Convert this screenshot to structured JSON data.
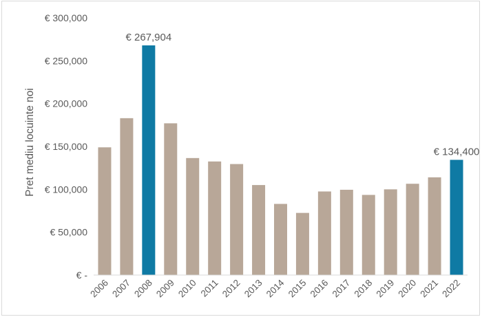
{
  "chart_data": {
    "type": "bar",
    "ylabel": "Pret mediu locuinte noi",
    "xlabel": "",
    "title": "",
    "ylim": [
      0,
      300000
    ],
    "grid": false,
    "legend": "none",
    "categories": [
      "2006",
      "2007",
      "2008",
      "2009",
      "2010",
      "2011",
      "2012",
      "2013",
      "2014",
      "2015",
      "2016",
      "2017",
      "2018",
      "2019",
      "2020",
      "2021",
      "2022"
    ],
    "values": [
      149000,
      183000,
      267904,
      177000,
      136500,
      132500,
      129500,
      105000,
      83000,
      72500,
      97500,
      99500,
      93500,
      100000,
      106500,
      114000,
      134400
    ],
    "highlighted": [
      "2008",
      "2022"
    ],
    "y_tick_values": [
      0,
      50000,
      100000,
      150000,
      200000,
      250000,
      300000
    ],
    "y_tick_labels": [
      "€ -",
      "€ 50,000",
      "€ 100,000",
      "€ 150,000",
      "€ 200,000",
      "€ 250,000",
      "€ 300,000"
    ],
    "data_labels": [
      {
        "category": "2008",
        "text": "€ 267,904"
      },
      {
        "category": "2022",
        "text": "€ 134,400"
      }
    ],
    "colors": {
      "bar": "#b8a798",
      "highlight": "#0f7aa4",
      "axis": "#d9d9d9",
      "text": "#595959"
    }
  }
}
